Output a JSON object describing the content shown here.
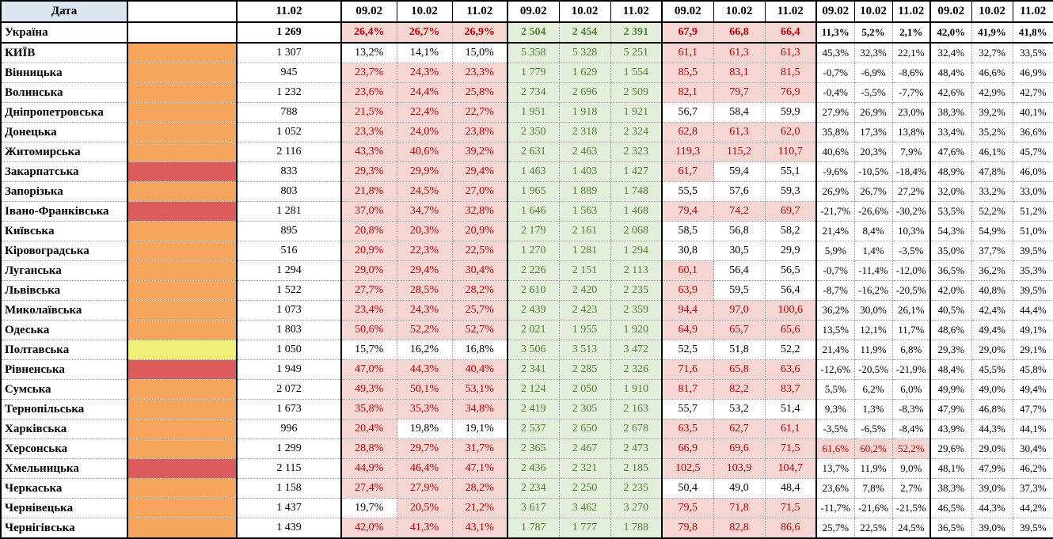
{
  "header": {
    "date_label": "Дата",
    "total_date": "11.02",
    "group_dates": [
      "09.02",
      "10.02",
      "11.02"
    ],
    "group_count": 5
  },
  "colors": {
    "header_blue": "#DCE6F1",
    "orange": "#F5A55C",
    "red": "#DC5B5B",
    "yellow": "#EEF078",
    "none": "#FFFFFF",
    "pink_bg": "#F6D6D3",
    "red_text": "#C00000",
    "green_bg": "#E3EFDA",
    "green_text": "#538135"
  },
  "rows": [
    {
      "name": "Україна",
      "bold": true,
      "swatch": "none",
      "total": "1 269",
      "a": [
        "26,4%",
        "26,7%",
        "26,9%"
      ],
      "a_hl": [
        1,
        1,
        1
      ],
      "b": [
        "2 504",
        "2 454",
        "2 391"
      ],
      "c": [
        "67,9",
        "66,8",
        "66,4"
      ],
      "c_hl": [
        1,
        1,
        1
      ],
      "d": [
        "11,3%",
        "5,2%",
        "2,1%"
      ],
      "d_hl": [
        0,
        0,
        0
      ],
      "e": [
        "42,0%",
        "41,9%",
        "41,8%"
      ]
    },
    {
      "name": "КИЇВ",
      "bold": false,
      "swatch": "orange",
      "total": "1 307",
      "a": [
        "13,2%",
        "14,1%",
        "15,0%"
      ],
      "a_hl": [
        0,
        0,
        0
      ],
      "b": [
        "5 358",
        "5 328",
        "5 251"
      ],
      "c": [
        "61,1",
        "61,3",
        "61,3"
      ],
      "c_hl": [
        1,
        1,
        1
      ],
      "d": [
        "45,3%",
        "32,3%",
        "22,1%"
      ],
      "d_hl": [
        0,
        0,
        0
      ],
      "e": [
        "32,4%",
        "32,7%",
        "33,5%"
      ]
    },
    {
      "name": "Вінницька",
      "bold": false,
      "swatch": "orange",
      "total": "945",
      "a": [
        "23,7%",
        "24,3%",
        "23,3%"
      ],
      "a_hl": [
        1,
        1,
        1
      ],
      "b": [
        "1 779",
        "1 629",
        "1 554"
      ],
      "c": [
        "85,5",
        "83,1",
        "81,5"
      ],
      "c_hl": [
        1,
        1,
        1
      ],
      "d": [
        "-0,7%",
        "-6,9%",
        "-8,6%"
      ],
      "d_hl": [
        0,
        0,
        0
      ],
      "e": [
        "48,4%",
        "46,6%",
        "46,9%"
      ]
    },
    {
      "name": "Волинська",
      "bold": false,
      "swatch": "orange",
      "total": "1 232",
      "a": [
        "23,6%",
        "24,4%",
        "25,8%"
      ],
      "a_hl": [
        1,
        1,
        1
      ],
      "b": [
        "2 734",
        "2 696",
        "2 509"
      ],
      "c": [
        "82,1",
        "79,7",
        "76,9"
      ],
      "c_hl": [
        1,
        1,
        1
      ],
      "d": [
        "-0,4%",
        "-5,5%",
        "-7,7%"
      ],
      "d_hl": [
        0,
        0,
        0
      ],
      "e": [
        "42,6%",
        "42,9%",
        "42,7%"
      ]
    },
    {
      "name": "Дніпропетровська",
      "bold": false,
      "swatch": "orange",
      "total": "788",
      "a": [
        "21,5%",
        "22,4%",
        "22,7%"
      ],
      "a_hl": [
        1,
        1,
        1
      ],
      "b": [
        "1 951",
        "1 918",
        "1 921"
      ],
      "c": [
        "56,7",
        "58,4",
        "59,9"
      ],
      "c_hl": [
        0,
        0,
        0
      ],
      "d": [
        "27,9%",
        "26,9%",
        "23,0%"
      ],
      "d_hl": [
        0,
        0,
        0
      ],
      "e": [
        "38,3%",
        "39,2%",
        "40,1%"
      ]
    },
    {
      "name": "Донецька",
      "bold": false,
      "swatch": "orange",
      "total": "1 052",
      "a": [
        "23,3%",
        "24,0%",
        "23,8%"
      ],
      "a_hl": [
        1,
        1,
        1
      ],
      "b": [
        "2 350",
        "2 318",
        "2 324"
      ],
      "c": [
        "62,8",
        "61,3",
        "62,0"
      ],
      "c_hl": [
        1,
        1,
        1
      ],
      "d": [
        "35,8%",
        "17,3%",
        "13,8%"
      ],
      "d_hl": [
        0,
        0,
        0
      ],
      "e": [
        "33,4%",
        "35,2%",
        "36,6%"
      ]
    },
    {
      "name": "Житомирська",
      "bold": false,
      "swatch": "orange",
      "total": "2 116",
      "a": [
        "43,3%",
        "40,6%",
        "39,2%"
      ],
      "a_hl": [
        1,
        1,
        1
      ],
      "b": [
        "2 631",
        "2 463",
        "2 323"
      ],
      "c": [
        "119,3",
        "115,2",
        "110,7"
      ],
      "c_hl": [
        1,
        1,
        1
      ],
      "d": [
        "40,6%",
        "20,3%",
        "7,9%"
      ],
      "d_hl": [
        0,
        0,
        0
      ],
      "e": [
        "47,6%",
        "46,1%",
        "45,7%"
      ]
    },
    {
      "name": "Закарпатська",
      "bold": false,
      "swatch": "red",
      "total": "833",
      "a": [
        "29,3%",
        "29,9%",
        "29,4%"
      ],
      "a_hl": [
        1,
        1,
        1
      ],
      "b": [
        "1 463",
        "1 403",
        "1 427"
      ],
      "c": [
        "61,7",
        "59,4",
        "55,1"
      ],
      "c_hl": [
        1,
        0,
        0
      ],
      "d": [
        "-9,6%",
        "-10,5%",
        "-18,4%"
      ],
      "d_hl": [
        0,
        0,
        0
      ],
      "e": [
        "48,9%",
        "47,8%",
        "46,0%"
      ]
    },
    {
      "name": "Запорізька",
      "bold": false,
      "swatch": "orange",
      "total": "803",
      "a": [
        "21,8%",
        "24,5%",
        "27,0%"
      ],
      "a_hl": [
        1,
        1,
        1
      ],
      "b": [
        "1 965",
        "1 889",
        "1 748"
      ],
      "c": [
        "55,5",
        "57,6",
        "59,3"
      ],
      "c_hl": [
        0,
        0,
        0
      ],
      "d": [
        "26,9%",
        "26,7%",
        "27,2%"
      ],
      "d_hl": [
        0,
        0,
        0
      ],
      "e": [
        "32,0%",
        "33,2%",
        "33,0%"
      ]
    },
    {
      "name": "Івано-Франківська",
      "bold": false,
      "swatch": "red",
      "total": "1 281",
      "a": [
        "37,0%",
        "34,7%",
        "32,8%"
      ],
      "a_hl": [
        1,
        1,
        1
      ],
      "b": [
        "1 646",
        "1 563",
        "1 468"
      ],
      "c": [
        "79,4",
        "74,2",
        "69,7"
      ],
      "c_hl": [
        1,
        1,
        1
      ],
      "d": [
        "-21,7%",
        "-26,6%",
        "-30,2%"
      ],
      "d_hl": [
        0,
        0,
        0
      ],
      "e": [
        "53,5%",
        "52,2%",
        "51,2%"
      ]
    },
    {
      "name": "Київська",
      "bold": false,
      "swatch": "orange",
      "total": "895",
      "a": [
        "20,8%",
        "20,3%",
        "20,9%"
      ],
      "a_hl": [
        1,
        1,
        1
      ],
      "b": [
        "2 179",
        "2 161",
        "2 068"
      ],
      "c": [
        "58,5",
        "56,8",
        "58,2"
      ],
      "c_hl": [
        0,
        0,
        0
      ],
      "d": [
        "21,4%",
        "8,4%",
        "10,3%"
      ],
      "d_hl": [
        0,
        0,
        0
      ],
      "e": [
        "54,3%",
        "54,9%",
        "51,0%"
      ]
    },
    {
      "name": "Кіровоградська",
      "bold": false,
      "swatch": "orange",
      "total": "516",
      "a": [
        "20,9%",
        "22,3%",
        "22,5%"
      ],
      "a_hl": [
        1,
        1,
        1
      ],
      "b": [
        "1 270",
        "1 281",
        "1 294"
      ],
      "c": [
        "30,8",
        "30,5",
        "29,9"
      ],
      "c_hl": [
        0,
        0,
        0
      ],
      "d": [
        "5,9%",
        "1,4%",
        "-3,5%"
      ],
      "d_hl": [
        0,
        0,
        0
      ],
      "e": [
        "35,0%",
        "37,7%",
        "39,5%"
      ]
    },
    {
      "name": "Луганська",
      "bold": false,
      "swatch": "orange",
      "total": "1 294",
      "a": [
        "29,0%",
        "29,4%",
        "30,4%"
      ],
      "a_hl": [
        1,
        1,
        1
      ],
      "b": [
        "2 226",
        "2 151",
        "2 113"
      ],
      "c": [
        "60,1",
        "56,4",
        "56,5"
      ],
      "c_hl": [
        1,
        0,
        0
      ],
      "d": [
        "-0,7%",
        "-11,4%",
        "-12,0%"
      ],
      "d_hl": [
        0,
        0,
        0
      ],
      "e": [
        "36,5%",
        "36,2%",
        "35,3%"
      ]
    },
    {
      "name": "Львівська",
      "bold": false,
      "swatch": "orange",
      "total": "1 522",
      "a": [
        "27,7%",
        "28,5%",
        "28,2%"
      ],
      "a_hl": [
        1,
        1,
        1
      ],
      "b": [
        "2 610",
        "2 420",
        "2 235"
      ],
      "c": [
        "63,9",
        "59,5",
        "56,4"
      ],
      "c_hl": [
        1,
        0,
        0
      ],
      "d": [
        "-8,7%",
        "-16,2%",
        "-20,5%"
      ],
      "d_hl": [
        0,
        0,
        0
      ],
      "e": [
        "42,0%",
        "40,8%",
        "39,5%"
      ]
    },
    {
      "name": "Миколаївська",
      "bold": false,
      "swatch": "orange",
      "total": "1 073",
      "a": [
        "23,4%",
        "24,3%",
        "25,7%"
      ],
      "a_hl": [
        1,
        1,
        1
      ],
      "b": [
        "2 439",
        "2 423",
        "2 359"
      ],
      "c": [
        "94,4",
        "97,0",
        "100,6"
      ],
      "c_hl": [
        1,
        1,
        1
      ],
      "d": [
        "36,2%",
        "30,0%",
        "26,1%"
      ],
      "d_hl": [
        0,
        0,
        0
      ],
      "e": [
        "40,5%",
        "42,4%",
        "44,4%"
      ]
    },
    {
      "name": "Одеська",
      "bold": false,
      "swatch": "orange",
      "total": "1 803",
      "a": [
        "50,6%",
        "52,2%",
        "52,7%"
      ],
      "a_hl": [
        1,
        1,
        1
      ],
      "b": [
        "2 021",
        "1 955",
        "1 920"
      ],
      "c": [
        "64,9",
        "65,7",
        "65,6"
      ],
      "c_hl": [
        1,
        1,
        1
      ],
      "d": [
        "13,5%",
        "12,1%",
        "11,7%"
      ],
      "d_hl": [
        0,
        0,
        0
      ],
      "e": [
        "48,6%",
        "49,4%",
        "49,1%"
      ]
    },
    {
      "name": "Полтавська",
      "bold": false,
      "swatch": "yellow",
      "total": "1 050",
      "a": [
        "15,7%",
        "16,2%",
        "16,8%"
      ],
      "a_hl": [
        0,
        0,
        0
      ],
      "b": [
        "3 506",
        "3 513",
        "3 472"
      ],
      "c": [
        "52,5",
        "51,8",
        "52,2"
      ],
      "c_hl": [
        0,
        0,
        0
      ],
      "d": [
        "21,4%",
        "11,9%",
        "6,8%"
      ],
      "d_hl": [
        0,
        0,
        0
      ],
      "e": [
        "29,3%",
        "29,0%",
        "29,1%"
      ]
    },
    {
      "name": "Рівненська",
      "bold": false,
      "swatch": "red",
      "total": "1 949",
      "a": [
        "47,0%",
        "44,3%",
        "40,4%"
      ],
      "a_hl": [
        1,
        1,
        1
      ],
      "b": [
        "2 341",
        "2 285",
        "2 326"
      ],
      "c": [
        "71,6",
        "65,8",
        "63,6"
      ],
      "c_hl": [
        1,
        1,
        1
      ],
      "d": [
        "-12,6%",
        "-20,5%",
        "-21,9%"
      ],
      "d_hl": [
        0,
        0,
        0
      ],
      "e": [
        "48,4%",
        "45,5%",
        "45,8%"
      ]
    },
    {
      "name": "Сумська",
      "bold": false,
      "swatch": "orange",
      "total": "2 072",
      "a": [
        "49,3%",
        "50,1%",
        "53,1%"
      ],
      "a_hl": [
        1,
        1,
        1
      ],
      "b": [
        "2 124",
        "2 050",
        "1 910"
      ],
      "c": [
        "81,7",
        "82,2",
        "83,7"
      ],
      "c_hl": [
        1,
        1,
        1
      ],
      "d": [
        "5,5%",
        "6,2%",
        "6,0%"
      ],
      "d_hl": [
        0,
        0,
        0
      ],
      "e": [
        "49,9%",
        "49,0%",
        "49,4%"
      ]
    },
    {
      "name": "Тернопільська",
      "bold": false,
      "swatch": "orange",
      "total": "1 673",
      "a": [
        "35,8%",
        "35,3%",
        "34,8%"
      ],
      "a_hl": [
        1,
        1,
        1
      ],
      "b": [
        "2 419",
        "2 305",
        "2 163"
      ],
      "c": [
        "55,7",
        "53,2",
        "51,4"
      ],
      "c_hl": [
        0,
        0,
        0
      ],
      "d": [
        "9,3%",
        "1,3%",
        "-8,3%"
      ],
      "d_hl": [
        0,
        0,
        0
      ],
      "e": [
        "47,9%",
        "46,8%",
        "47,7%"
      ]
    },
    {
      "name": "Харківська",
      "bold": false,
      "swatch": "orange",
      "total": "996",
      "a": [
        "20,4%",
        "19,8%",
        "19,1%"
      ],
      "a_hl": [
        1,
        0,
        0
      ],
      "b": [
        "2 537",
        "2 650",
        "2 678"
      ],
      "c": [
        "63,5",
        "62,7",
        "61,1"
      ],
      "c_hl": [
        1,
        1,
        1
      ],
      "d": [
        "-3,5%",
        "-6,5%",
        "-8,4%"
      ],
      "d_hl": [
        0,
        0,
        0
      ],
      "e": [
        "43,9%",
        "44,3%",
        "44,1%"
      ]
    },
    {
      "name": "Херсонська",
      "bold": false,
      "swatch": "orange",
      "total": "1 299",
      "a": [
        "28,8%",
        "29,7%",
        "31,7%"
      ],
      "a_hl": [
        1,
        1,
        1
      ],
      "b": [
        "2 365",
        "2 467",
        "2 473"
      ],
      "c": [
        "66,9",
        "69,6",
        "71,5"
      ],
      "c_hl": [
        1,
        1,
        1
      ],
      "d": [
        "61,6%",
        "60,2%",
        "52,2%"
      ],
      "d_hl": [
        1,
        1,
        1
      ],
      "e": [
        "29,6%",
        "29,0%",
        "30,4%"
      ]
    },
    {
      "name": "Хмельницька",
      "bold": false,
      "swatch": "red",
      "total": "2 115",
      "a": [
        "44,9%",
        "46,4%",
        "47,1%"
      ],
      "a_hl": [
        1,
        1,
        1
      ],
      "b": [
        "2 436",
        "2 321",
        "2 185"
      ],
      "c": [
        "102,5",
        "103,9",
        "104,7"
      ],
      "c_hl": [
        1,
        1,
        1
      ],
      "d": [
        "13,7%",
        "11,9%",
        "9,0%"
      ],
      "d_hl": [
        0,
        0,
        0
      ],
      "e": [
        "48,1%",
        "47,9%",
        "46,2%"
      ]
    },
    {
      "name": "Черкаська",
      "bold": false,
      "swatch": "orange",
      "total": "1 158",
      "a": [
        "27,4%",
        "27,9%",
        "28,2%"
      ],
      "a_hl": [
        1,
        1,
        1
      ],
      "b": [
        "2 234",
        "2 250",
        "2 235"
      ],
      "c": [
        "50,4",
        "49,0",
        "48,4"
      ],
      "c_hl": [
        0,
        0,
        0
      ],
      "d": [
        "23,6%",
        "7,8%",
        "2,7%"
      ],
      "d_hl": [
        0,
        0,
        0
      ],
      "e": [
        "38,3%",
        "39,0%",
        "37,3%"
      ]
    },
    {
      "name": "Чернівецька",
      "bold": false,
      "swatch": "orange",
      "total": "1 437",
      "a": [
        "19,7%",
        "20,5%",
        "21,2%"
      ],
      "a_hl": [
        0,
        1,
        1
      ],
      "b": [
        "3 617",
        "3 462",
        "3 270"
      ],
      "c": [
        "79,5",
        "71,8",
        "71,5"
      ],
      "c_hl": [
        1,
        1,
        1
      ],
      "d": [
        "-11,7%",
        "-21,6%",
        "-21,5%"
      ],
      "d_hl": [
        0,
        0,
        0
      ],
      "e": [
        "46,5%",
        "44,3%",
        "44,2%"
      ]
    },
    {
      "name": "Чернігівська",
      "bold": false,
      "swatch": "orange",
      "total": "1 439",
      "a": [
        "42,0%",
        "41,3%",
        "43,1%"
      ],
      "a_hl": [
        1,
        1,
        1
      ],
      "b": [
        "1 787",
        "1 777",
        "1 788"
      ],
      "c": [
        "79,8",
        "82,8",
        "86,6"
      ],
      "c_hl": [
        1,
        1,
        1
      ],
      "d": [
        "25,7%",
        "22,5%",
        "24,5%"
      ],
      "d_hl": [
        0,
        0,
        0
      ],
      "e": [
        "36,5%",
        "39,0%",
        "39,5%"
      ]
    }
  ]
}
